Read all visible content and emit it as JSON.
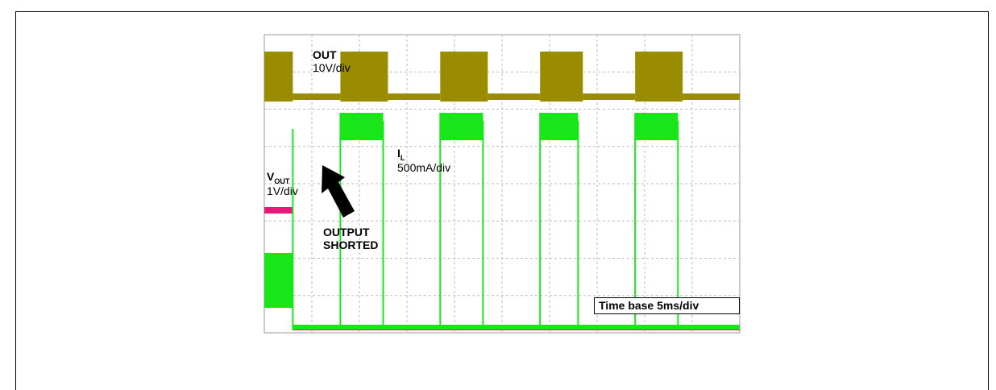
{
  "chart_data": {
    "type": "line",
    "title": "",
    "time_base": "Time base 5ms/div",
    "divisions": {
      "x": 10,
      "y": 8
    },
    "arrow_label": [
      "OUTPUT",
      "SHORTED"
    ],
    "series": [
      {
        "name": "OUT",
        "scale": "10V/div",
        "color": "#9a8c00",
        "segments": [
          {
            "t": [
              0,
              0.6
            ],
            "level": "high-switching"
          },
          {
            "t": [
              0.6,
              1.6
            ],
            "level": "low"
          },
          {
            "t": [
              1.6,
              2.6
            ],
            "level": "high-switching"
          },
          {
            "t": [
              2.6,
              3.7
            ],
            "level": "low"
          },
          {
            "t": [
              3.7,
              4.7
            ],
            "level": "high-switching"
          },
          {
            "t": [
              4.7,
              5.8
            ],
            "level": "low"
          },
          {
            "t": [
              5.8,
              6.7
            ],
            "level": "high-switching"
          },
          {
            "t": [
              6.7,
              7.8
            ],
            "level": "low"
          },
          {
            "t": [
              7.8,
              8.8
            ],
            "level": "high-switching"
          },
          {
            "t": [
              8.8,
              10
            ],
            "level": "low"
          }
        ]
      },
      {
        "name": "IL",
        "label_main": "I",
        "label_sub": "L",
        "scale": "500mA/div",
        "color": "#19e619",
        "pulses_t": [
          [
            0.6,
            0.65
          ],
          [
            1.6,
            2.5
          ],
          [
            3.7,
            4.6
          ],
          [
            5.8,
            6.6
          ],
          [
            7.8,
            8.7
          ]
        ]
      },
      {
        "name": "VOUT",
        "label_main": "V",
        "label_sub": "OUT",
        "scale": "1V/div",
        "color": "#e6197a",
        "before_short_level": 4.2,
        "after_short_level": 0.1
      }
    ]
  }
}
